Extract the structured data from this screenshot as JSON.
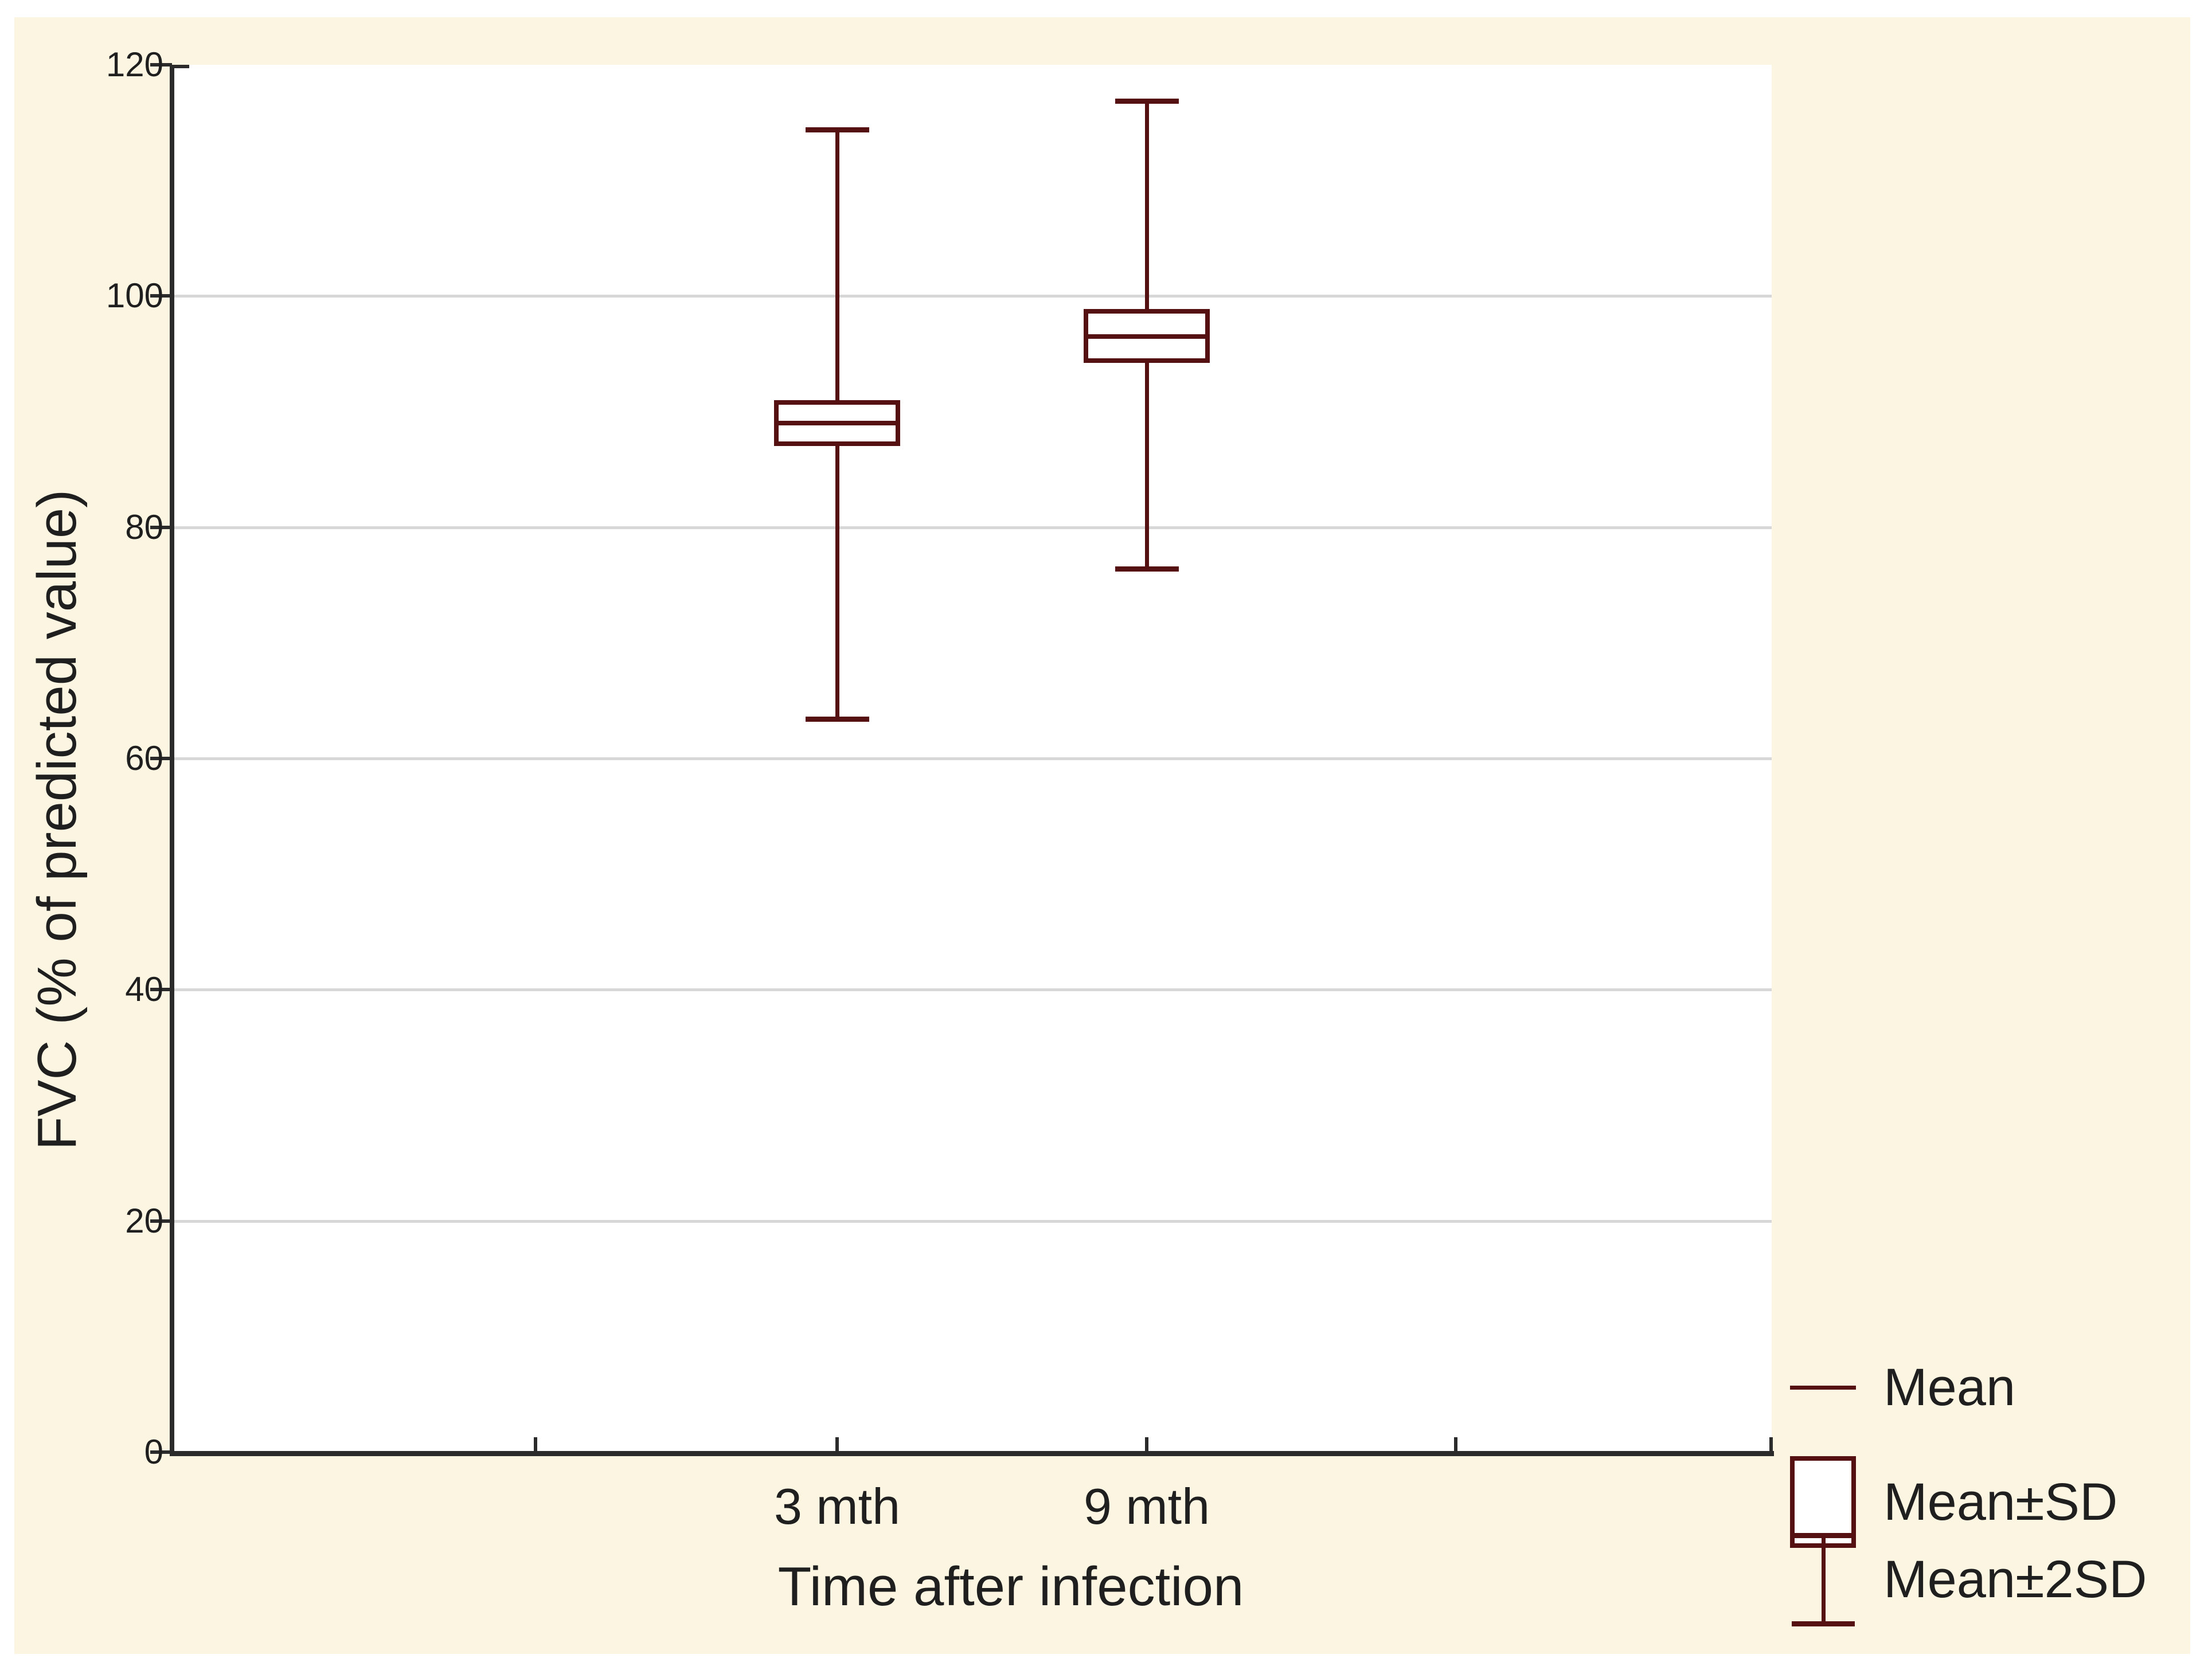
{
  "figure": {
    "background_color": "#ffffff",
    "panel_color": "#fcf5e2",
    "plot_background_color": "#ffffff",
    "series_color": "#551111",
    "grid_color": "#d7d7d7",
    "axis_color": "#2b2b2b",
    "text_color": "#1f1f1f"
  },
  "chart_data": {
    "type": "box",
    "title": "",
    "xlabel": "Time after infection",
    "ylabel": "FVC (% of predicted value)",
    "categories": [
      "3 mth",
      "9 mth"
    ],
    "y_ticks": [
      0,
      20,
      40,
      60,
      80,
      100,
      120
    ],
    "ylim": [
      0,
      120
    ],
    "grid": "horizontal gridlines at 20,40,60,80,100",
    "legend_position": "bottom-right outside plot",
    "series": [
      {
        "category": "3 mth",
        "mean": 89.0,
        "mean_minus_sd": 87.0,
        "mean_plus_sd": 91.0,
        "mean_minus_2sd": 63.4,
        "mean_plus_2sd": 114.4
      },
      {
        "category": "9 mth",
        "mean": 96.5,
        "mean_minus_sd": 94.2,
        "mean_plus_sd": 98.9,
        "mean_minus_2sd": 76.4,
        "mean_plus_2sd": 116.9
      }
    ],
    "legend": [
      {
        "label": "Mean",
        "glyph": "line"
      },
      {
        "label": "Mean±SD",
        "glyph": "box"
      },
      {
        "label": "Mean±2SD",
        "glyph": "whisker"
      }
    ]
  }
}
